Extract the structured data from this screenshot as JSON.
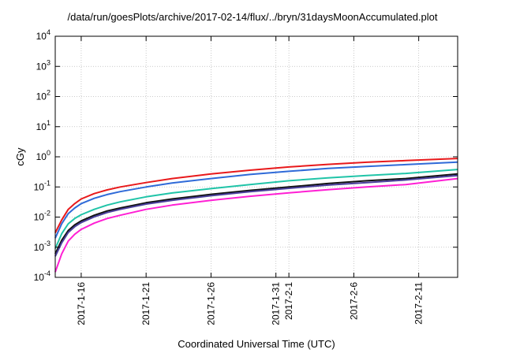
{
  "chart_data": {
    "type": "line",
    "title": "/data/run/goesPlots/archive/2017-02-14/flux/../bryn/31daysMoonAccumulated.plot",
    "xlabel": "Coordinated Universal Time (UTC)",
    "ylabel": "cGy",
    "y_scale": "log",
    "ylim": [
      0.0001,
      10000
    ],
    "xlim": [
      "2017-01-14",
      "2017-02-14"
    ],
    "grid": true,
    "x_ticks": [
      {
        "x": "2017-01-16",
        "label": "2017-1-16"
      },
      {
        "x": "2017-01-21",
        "label": "2017-1-21"
      },
      {
        "x": "2017-01-26",
        "label": "2017-1-26"
      },
      {
        "x": "2017-01-31",
        "label": "2017-1-31"
      },
      {
        "x": "2017-02-01",
        "label": "2017-2-1"
      },
      {
        "x": "2017-02-06",
        "label": "2017-2-6"
      },
      {
        "x": "2017-02-11",
        "label": "2017-2-11"
      }
    ],
    "y_ticks": [
      {
        "value": 0.0001,
        "base": "10",
        "exp": "-4"
      },
      {
        "value": 0.001,
        "base": "10",
        "exp": "-3"
      },
      {
        "value": 0.01,
        "base": "10",
        "exp": "-2"
      },
      {
        "value": 0.1,
        "base": "10",
        "exp": "-1"
      },
      {
        "value": 1,
        "base": "10",
        "exp": "0"
      },
      {
        "value": 10,
        "base": "10",
        "exp": "1"
      },
      {
        "value": 100,
        "base": "10",
        "exp": "2"
      },
      {
        "value": 1000,
        "base": "10",
        "exp": "3"
      },
      {
        "value": 10000,
        "base": "10",
        "exp": "4"
      }
    ],
    "x": [
      "2017-01-14",
      "2017-01-14 12:00",
      "2017-01-15",
      "2017-01-15 12:00",
      "2017-01-16",
      "2017-01-17",
      "2017-01-18",
      "2017-01-19",
      "2017-01-21",
      "2017-01-23",
      "2017-01-26",
      "2017-01-29",
      "2017-02-01",
      "2017-02-04",
      "2017-02-07",
      "2017-02-10",
      "2017-02-14"
    ],
    "series": [
      {
        "color": "#e8191b",
        "values": [
          0.003,
          0.008,
          0.018,
          0.028,
          0.04,
          0.06,
          0.08,
          0.1,
          0.14,
          0.19,
          0.27,
          0.36,
          0.46,
          0.56,
          0.66,
          0.75,
          0.88
        ]
      },
      {
        "color": "#2f6ad8",
        "values": [
          0.002,
          0.006,
          0.013,
          0.02,
          0.028,
          0.042,
          0.056,
          0.07,
          0.1,
          0.135,
          0.19,
          0.26,
          0.33,
          0.41,
          0.48,
          0.55,
          0.67
        ]
      },
      {
        "color": "#20c4a8",
        "values": [
          0.0009,
          0.0028,
          0.006,
          0.009,
          0.012,
          0.018,
          0.025,
          0.032,
          0.047,
          0.063,
          0.088,
          0.12,
          0.16,
          0.2,
          0.24,
          0.28,
          0.38
        ]
      },
      {
        "color": "#111111",
        "values": [
          0.0006,
          0.0017,
          0.0036,
          0.0055,
          0.0075,
          0.0115,
          0.016,
          0.02,
          0.03,
          0.04,
          0.057,
          0.077,
          0.1,
          0.13,
          0.16,
          0.19,
          0.27
        ]
      },
      {
        "color": "#4a3f9c",
        "values": [
          0.0005,
          0.0014,
          0.0031,
          0.0048,
          0.0066,
          0.0102,
          0.0142,
          0.018,
          0.027,
          0.036,
          0.051,
          0.07,
          0.09,
          0.115,
          0.14,
          0.17,
          0.24
        ]
      },
      {
        "color": "#ff1fd4",
        "values": [
          0.00015,
          0.0006,
          0.0016,
          0.0027,
          0.0039,
          0.0063,
          0.009,
          0.0115,
          0.018,
          0.025,
          0.036,
          0.049,
          0.064,
          0.081,
          0.1,
          0.12,
          0.19
        ]
      }
    ]
  }
}
